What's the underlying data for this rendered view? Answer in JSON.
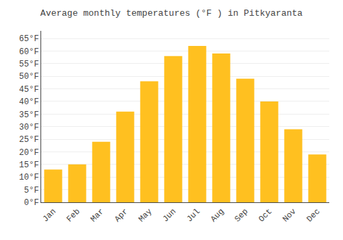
{
  "chart_data": {
    "type": "bar",
    "title": "Average monthly temperatures (°F ) in Pitkyaranta",
    "categories": [
      "Jan",
      "Feb",
      "Mar",
      "Apr",
      "May",
      "Jun",
      "Jul",
      "Aug",
      "Sep",
      "Oct",
      "Nov",
      "Dec"
    ],
    "values": [
      13,
      15,
      24,
      36,
      48,
      58,
      62,
      59,
      49,
      40,
      29,
      19
    ],
    "color": "#FFC020",
    "ylim": [
      0,
      68
    ],
    "yticks": [
      {
        "value": 0,
        "label": "0°F"
      },
      {
        "value": 5,
        "label": "5°F"
      },
      {
        "value": 10,
        "label": "10°F"
      },
      {
        "value": 15,
        "label": "15°F"
      },
      {
        "value": 20,
        "label": "20°F"
      },
      {
        "value": 25,
        "label": "25°F"
      },
      {
        "value": 30,
        "label": "30°F"
      },
      {
        "value": 35,
        "label": "35°F"
      },
      {
        "value": 40,
        "label": "40°F"
      },
      {
        "value": 45,
        "label": "45°F"
      },
      {
        "value": 50,
        "label": "50°F"
      },
      {
        "value": 55,
        "label": "55°F"
      },
      {
        "value": 60,
        "label": "60°F"
      },
      {
        "value": 65,
        "label": "65°F"
      }
    ],
    "grid": true
  }
}
